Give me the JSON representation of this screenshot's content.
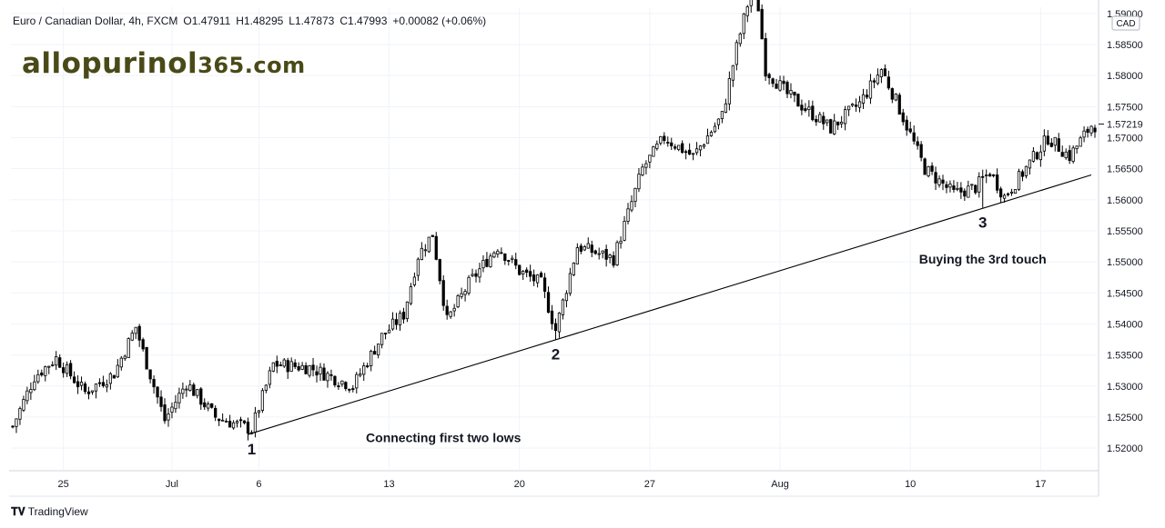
{
  "header": {
    "symbol": "Euro / Canadian Dollar, 4h, FXCM",
    "open": "O1.47911",
    "high": "H1.48295",
    "low": "L1.47873",
    "close": "C1.47993",
    "change": "+0.00082 (+0.06%)"
  },
  "watermark": {
    "main": "allopurinol",
    "suffix": "365.com"
  },
  "branding": {
    "text": "TradingView"
  },
  "chart_data": {
    "type": "candlestick",
    "title": "",
    "currency_label": "CAD",
    "last_price_label": "1.57219",
    "y_ticks": [
      "1.52000",
      "1.52500",
      "1.53000",
      "1.53500",
      "1.54000",
      "1.54500",
      "1.55000",
      "1.55500",
      "1.56000",
      "1.56500",
      "1.57000",
      "1.57500",
      "1.58000",
      "1.58500",
      "1.59000"
    ],
    "ylim": [
      1.5165,
      1.591
    ],
    "x_ticks": [
      "25",
      "Jul",
      "6",
      "13",
      "20",
      "27",
      "Aug",
      "10",
      "17"
    ],
    "x_tick_index": [
      14,
      44,
      68,
      104,
      140,
      176,
      212,
      248,
      284
    ],
    "n_bars": 300,
    "trendline": {
      "start_index": 65,
      "start_price": 1.5222,
      "end_index": 298,
      "end_price": 1.564
    },
    "touch_points": [
      {
        "label": "1",
        "index": 66,
        "price": 1.5222
      },
      {
        "label": "2",
        "index": 150,
        "price": 1.5375
      },
      {
        "label": "3",
        "index": 268,
        "price": 1.5587
      }
    ],
    "annotations": [
      {
        "text": "Connecting first two lows",
        "index": 119,
        "price": 1.521
      },
      {
        "text": "Buying the 3rd touch",
        "index": 268,
        "price": 1.5497
      }
    ],
    "close_path": [
      [
        0,
        1.5235
      ],
      [
        6,
        1.5315
      ],
      [
        12,
        1.5345
      ],
      [
        20,
        1.529
      ],
      [
        28,
        1.532
      ],
      [
        34,
        1.5395
      ],
      [
        36,
        1.5355
      ],
      [
        42,
        1.5245
      ],
      [
        48,
        1.5305
      ],
      [
        56,
        1.525
      ],
      [
        66,
        1.523
      ],
      [
        72,
        1.5335
      ],
      [
        82,
        1.533
      ],
      [
        94,
        1.53
      ],
      [
        102,
        1.538
      ],
      [
        108,
        1.5415
      ],
      [
        112,
        1.551
      ],
      [
        116,
        1.5545
      ],
      [
        120,
        1.5405
      ],
      [
        126,
        1.5465
      ],
      [
        134,
        1.5525
      ],
      [
        140,
        1.5485
      ],
      [
        146,
        1.5465
      ],
      [
        150,
        1.539
      ],
      [
        156,
        1.5525
      ],
      [
        166,
        1.5505
      ],
      [
        174,
        1.565
      ],
      [
        180,
        1.57
      ],
      [
        188,
        1.567
      ],
      [
        196,
        1.5735
      ],
      [
        200,
        1.5845
      ],
      [
        205,
        1.596
      ],
      [
        208,
        1.581
      ],
      [
        214,
        1.577
      ],
      [
        226,
        1.5715
      ],
      [
        234,
        1.5755
      ],
      [
        240,
        1.581
      ],
      [
        244,
        1.576
      ],
      [
        252,
        1.565
      ],
      [
        260,
        1.561
      ],
      [
        266,
        1.562
      ],
      [
        270,
        1.5645
      ],
      [
        274,
        1.5605
      ],
      [
        278,
        1.5635
      ],
      [
        286,
        1.57
      ],
      [
        292,
        1.567
      ],
      [
        298,
        1.572
      ]
    ]
  }
}
